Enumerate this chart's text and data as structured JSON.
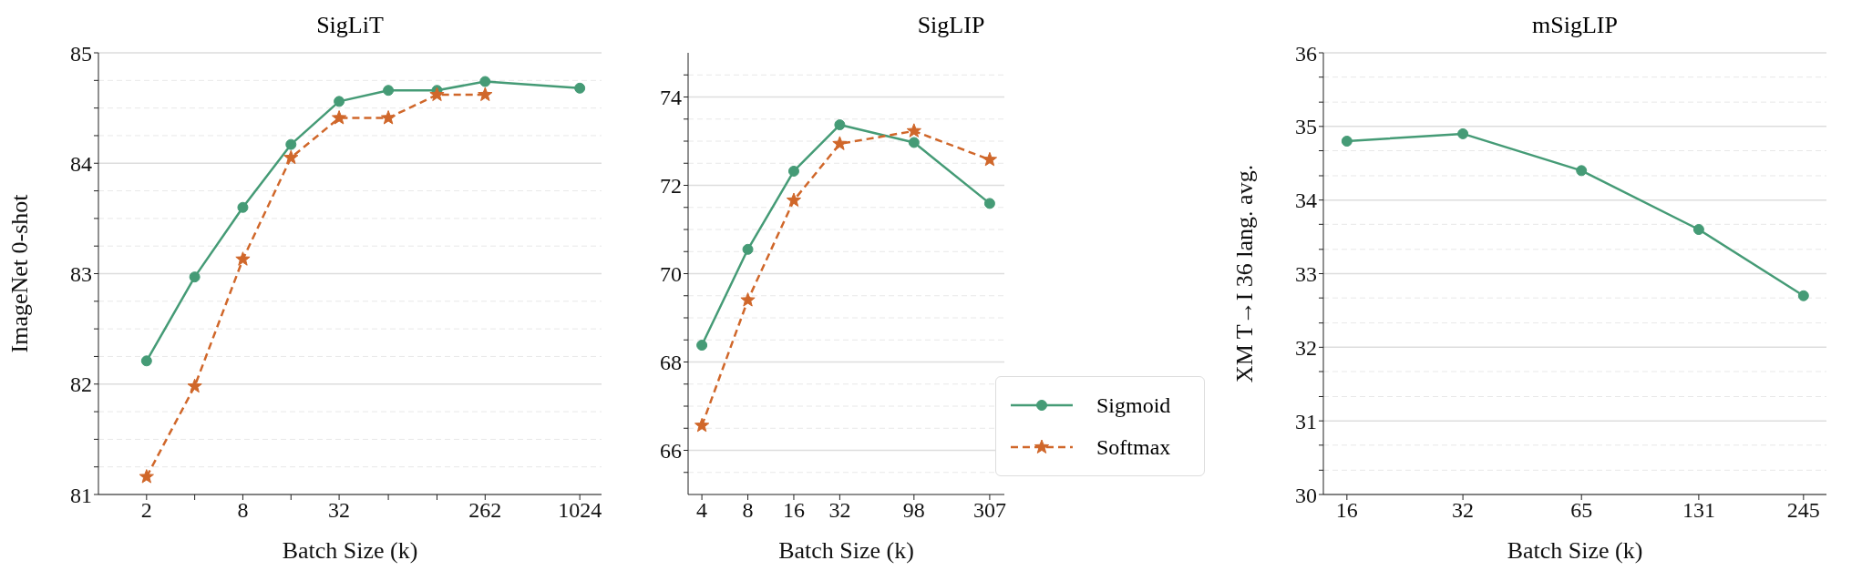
{
  "chart_data": [
    {
      "type": "line",
      "title": "SigLiT",
      "xlabel": "Batch Size (k)",
      "ylabel": "ImageNet 0-shot",
      "log": "x",
      "grid": "y",
      "legend": false,
      "xlim": [
        1,
        1400
      ],
      "xticks": [
        2,
        {
          "value": 4,
          "label": null
        },
        8,
        {
          "value": 16,
          "label": null
        },
        32,
        {
          "value": 65,
          "label": null
        },
        {
          "value": 131,
          "label": null
        },
        262,
        1024
      ],
      "ylim": [
        81,
        85
      ],
      "yticks": [
        81,
        {
          "value": 81.25,
          "label": null
        },
        {
          "value": 81.5,
          "label": null
        },
        {
          "value": 81.75,
          "label": null
        },
        82,
        {
          "value": 82.25,
          "label": null
        },
        {
          "value": 82.5,
          "label": null
        },
        {
          "value": 82.75,
          "label": null
        },
        83,
        {
          "value": 83.25,
          "label": null
        },
        {
          "value": 83.5,
          "label": null
        },
        {
          "value": 83.75,
          "label": null
        },
        84,
        {
          "value": 84.25,
          "label": null
        },
        {
          "value": 84.5,
          "label": null
        },
        {
          "value": 84.75,
          "label": null
        },
        85
      ],
      "series": [
        {
          "color": "#459b76",
          "marker": "circle",
          "line_style": "solid",
          "x": [
            2,
            4,
            8,
            16,
            32,
            65,
            131,
            262,
            1024
          ],
          "values": [
            82.21,
            82.97,
            83.6,
            84.17,
            84.56,
            84.66,
            84.66,
            84.74,
            84.68
          ]
        },
        {
          "color": "#d0672a",
          "marker": "star",
          "line_style": "dashed",
          "x": [
            2,
            4,
            8,
            16,
            32,
            65,
            131,
            262
          ],
          "values": [
            81.16,
            81.98,
            83.13,
            84.05,
            84.41,
            84.41,
            84.62,
            84.62
          ]
        }
      ]
    },
    {
      "type": "line",
      "title": "SigLIP",
      "xlabel": "Batch Size (k)",
      "log": "x",
      "grid": "y",
      "legend": "bottom right",
      "xlim": [
        3.25,
        383
      ],
      "xticks": [
        4,
        8,
        16,
        32,
        98,
        307
      ],
      "ylim": [
        65,
        75
      ],
      "yticks": [
        {
          "value": 65.5,
          "label": null
        },
        66,
        {
          "value": 66.5,
          "label": null
        },
        {
          "value": 67,
          "label": null
        },
        {
          "value": 67.5,
          "label": null
        },
        68,
        {
          "value": 68.5,
          "label": null
        },
        {
          "value": 69,
          "label": null
        },
        {
          "value": 69.5,
          "label": null
        },
        70,
        {
          "value": 70.5,
          "label": null
        },
        {
          "value": 71,
          "label": null
        },
        {
          "value": 71.5,
          "label": null
        },
        72,
        {
          "value": 72.5,
          "label": null
        },
        {
          "value": 73,
          "label": null
        },
        {
          "value": 73.5,
          "label": null
        },
        74,
        {
          "value": 74.5,
          "label": null
        }
      ],
      "series": [
        {
          "name": "Sigmoid",
          "color": "#459b76",
          "marker": "circle",
          "line_style": "solid",
          "x": [
            4,
            8,
            16,
            32,
            98,
            307
          ],
          "values": [
            68.38,
            70.55,
            72.32,
            73.37,
            72.97,
            71.59
          ]
        },
        {
          "name": "Softmax",
          "color": "#d0672a",
          "marker": "star",
          "line_style": "dashed",
          "x": [
            4,
            8,
            16,
            32,
            98,
            307
          ],
          "values": [
            66.56,
            69.4,
            71.66,
            72.94,
            73.23,
            72.58
          ]
        }
      ]
    },
    {
      "type": "line",
      "title": "mSigLIP",
      "xlabel": "Batch Size (k)",
      "ylabel": "XM T→I 36 lang. avg.",
      "log": "x",
      "grid": "y",
      "legend": false,
      "xlim": [
        13.9,
        281
      ],
      "xticks": [
        16,
        32,
        65,
        131,
        245
      ],
      "ylim": [
        30,
        36
      ],
      "yticks": [
        30,
        {
          "value": 30.33,
          "label": null
        },
        {
          "value": 30.67,
          "label": null
        },
        31,
        {
          "value": 31.33,
          "label": null
        },
        {
          "value": 31.67,
          "label": null
        },
        32,
        {
          "value": 32.33,
          "label": null
        },
        {
          "value": 32.67,
          "label": null
        },
        33,
        {
          "value": 33.33,
          "label": null
        },
        {
          "value": 33.67,
          "label": null
        },
        34,
        {
          "value": 34.33,
          "label": null
        },
        {
          "value": 34.67,
          "label": null
        },
        35,
        {
          "value": 35.33,
          "label": null
        },
        {
          "value": 35.67,
          "label": null
        },
        36
      ],
      "series": [
        {
          "color": "#459b76",
          "marker": "circle",
          "line_style": "solid",
          "x": [
            16,
            32,
            65,
            131,
            245
          ],
          "values": [
            34.8,
            34.9,
            34.4,
            33.6,
            32.7
          ]
        }
      ]
    }
  ]
}
